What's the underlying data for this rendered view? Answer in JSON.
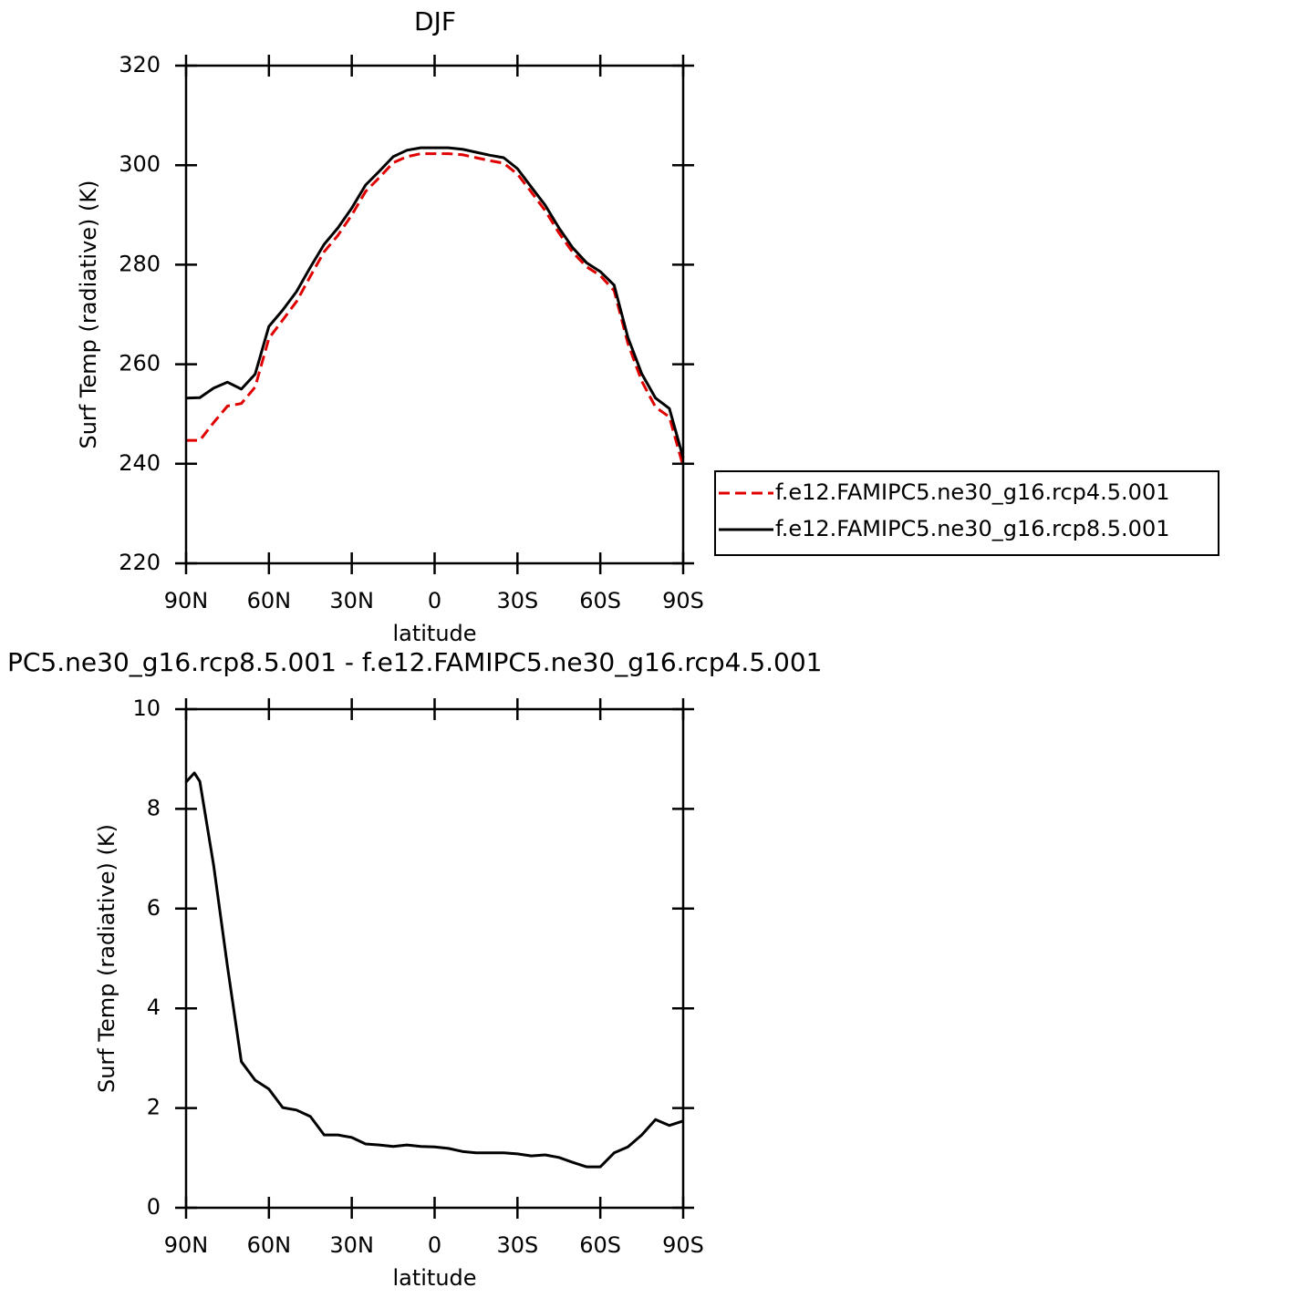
{
  "chart_data": [
    {
      "type": "line",
      "title": "DJF",
      "xlabel": "latitude",
      "ylabel": "Surf Temp (radiative) (K)",
      "x": [
        90,
        85,
        80,
        75,
        70,
        65,
        60,
        55,
        50,
        45,
        40,
        35,
        30,
        25,
        20,
        15,
        10,
        5,
        0,
        -5,
        -10,
        -15,
        -20,
        -25,
        -30,
        -35,
        -40,
        -45,
        -50,
        -55,
        -60,
        -65,
        -70,
        -75,
        -80,
        -85,
        -90
      ],
      "series": [
        {
          "name": "f.e12.FAMIPC5.ne30_g16.rcp4.5.001",
          "color": "#e00000",
          "dash": true,
          "values": [
            244.7,
            244.7,
            248.3,
            251.6,
            252.1,
            255.4,
            265.2,
            268.9,
            272.6,
            277.7,
            282.6,
            285.9,
            290.0,
            294.7,
            297.5,
            300.5,
            301.7,
            302.3,
            302.3,
            302.3,
            302.1,
            301.5,
            300.9,
            300.4,
            298.2,
            294.6,
            290.9,
            286.4,
            282.5,
            279.6,
            277.8,
            274.8,
            264.2,
            256.6,
            251.4,
            249.4,
            239.5
          ]
        },
        {
          "name": "f.e12.FAMIPC5.ne30_g16.rcp8.5.001",
          "color": "#000000",
          "dash": false,
          "values": [
            253.2,
            253.3,
            255.2,
            256.4,
            255.0,
            258.0,
            267.6,
            270.9,
            274.6,
            279.5,
            284.1,
            287.4,
            291.4,
            296.0,
            298.8,
            301.7,
            303.0,
            303.5,
            303.5,
            303.5,
            303.2,
            302.6,
            302.0,
            301.5,
            299.3,
            295.6,
            292.0,
            287.4,
            283.4,
            280.4,
            278.6,
            275.9,
            265.4,
            258.1,
            253.2,
            251.1,
            241.2
          ]
        }
      ],
      "xlim": [
        90,
        -90
      ],
      "xticks": [
        {
          "value": 90,
          "label": "90N"
        },
        {
          "value": 60,
          "label": "60N"
        },
        {
          "value": 30,
          "label": "30N"
        },
        0,
        {
          "value": -30,
          "label": "30S"
        },
        {
          "value": -60,
          "label": "60S"
        },
        {
          "value": -90,
          "label": "90S"
        }
      ],
      "ylim": [
        220,
        320
      ],
      "yticks": [
        220,
        240,
        260,
        280,
        300,
        320
      ]
    },
    {
      "type": "line",
      "title": "PC5.ne30_g16.rcp8.5.001 - f.e12.FAMIPC5.ne30_g16.rcp4.5.001",
      "xlabel": "latitude",
      "ylabel": "Surf Temp (radiative) (K)",
      "x": [
        90,
        87,
        85,
        80,
        75,
        70,
        65,
        60,
        55,
        50,
        45,
        40,
        35,
        30,
        25,
        20,
        15,
        10,
        5,
        0,
        -5,
        -10,
        -15,
        -20,
        -25,
        -30,
        -35,
        -40,
        -45,
        -50,
        -55,
        -60,
        -65,
        -70,
        -75,
        -80,
        -85,
        -90
      ],
      "series": [
        {
          "color": "#000000",
          "dash": false,
          "values": [
            8.54,
            8.72,
            8.55,
            6.86,
            4.84,
            2.93,
            2.56,
            2.38,
            2.01,
            1.96,
            1.83,
            1.46,
            1.46,
            1.41,
            1.28,
            1.26,
            1.23,
            1.26,
            1.23,
            1.22,
            1.19,
            1.13,
            1.1,
            1.1,
            1.1,
            1.08,
            1.04,
            1.06,
            1.01,
            0.91,
            0.82,
            0.82,
            1.1,
            1.22,
            1.46,
            1.77,
            1.65,
            1.74
          ]
        }
      ],
      "xlim": [
        90,
        -90
      ],
      "xticks": [
        {
          "value": 90,
          "label": "90N"
        },
        {
          "value": 60,
          "label": "60N"
        },
        {
          "value": 30,
          "label": "30N"
        },
        0,
        {
          "value": -30,
          "label": "30S"
        },
        {
          "value": -60,
          "label": "60S"
        },
        {
          "value": -90,
          "label": "90S"
        }
      ],
      "ylim": [
        0,
        10
      ],
      "yticks": [
        0,
        2,
        4,
        6,
        8,
        10
      ]
    }
  ]
}
